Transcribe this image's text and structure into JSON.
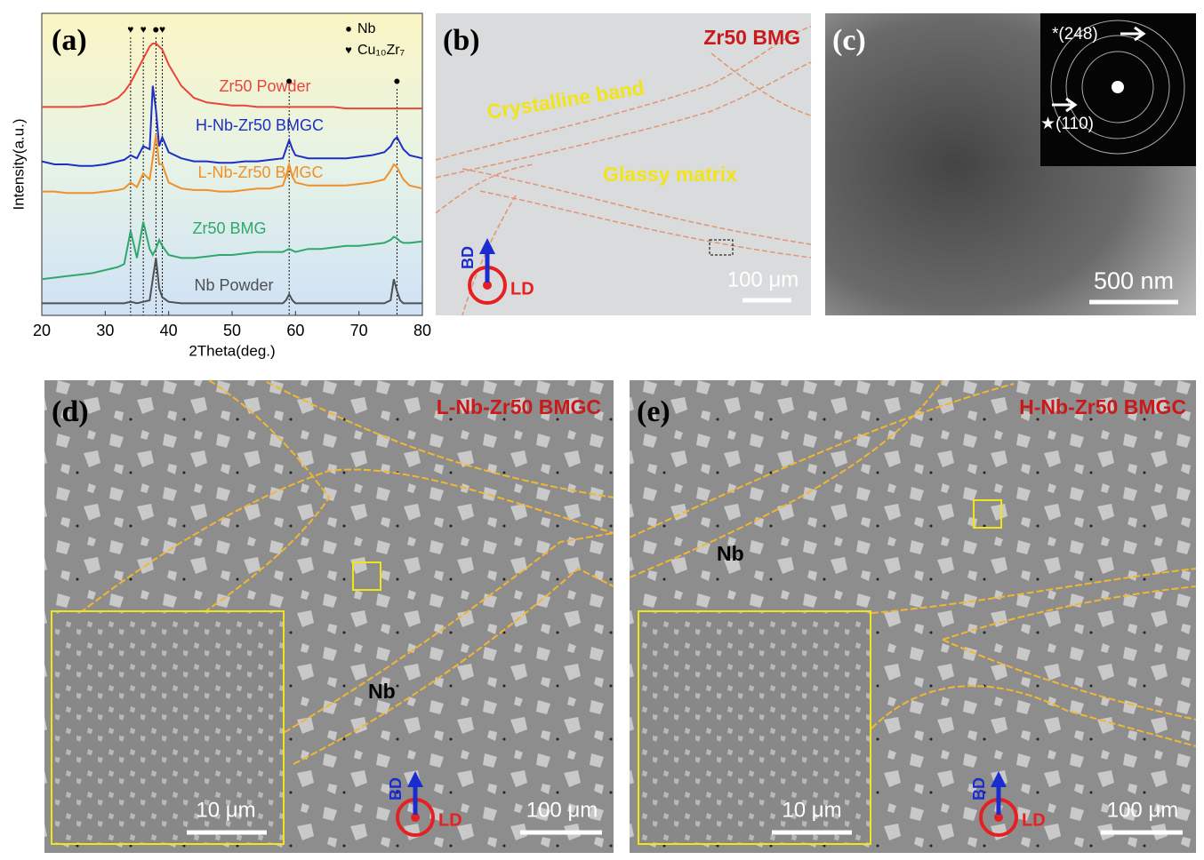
{
  "chart_data": {
    "type": "line",
    "x_label": "2Theta(deg.)",
    "y_label": "Intensity(a.u.)",
    "panel_label": "(a)",
    "xlim": [
      20,
      80
    ],
    "xticks": [
      20,
      30,
      40,
      50,
      60,
      70,
      80
    ],
    "ylim": [
      0,
      10
    ],
    "x": [
      20,
      22,
      24,
      26,
      28,
      30,
      32,
      33,
      34,
      35,
      36,
      37,
      37.5,
      38,
      38.5,
      39,
      40,
      42,
      44,
      46,
      48,
      50,
      52,
      54,
      56,
      58,
      58.5,
      59,
      59.5,
      60,
      62,
      64,
      66,
      68,
      70,
      72,
      74,
      75,
      75.5,
      76,
      76.5,
      77,
      78,
      80
    ],
    "series": [
      {
        "name": "Zr50 Powder",
        "color": "#e8453c",
        "values": [
          6.9,
          6.9,
          6.9,
          6.9,
          6.95,
          7.0,
          7.2,
          7.4,
          7.7,
          8.1,
          8.5,
          8.9,
          9.0,
          9.0,
          8.9,
          8.8,
          8.3,
          7.6,
          7.2,
          7.05,
          7.0,
          6.95,
          6.95,
          6.9,
          6.9,
          6.9,
          6.9,
          6.9,
          6.9,
          6.9,
          6.9,
          6.9,
          6.9,
          6.85,
          6.85,
          6.85,
          6.85,
          6.85,
          6.85,
          6.85,
          6.85,
          6.85,
          6.85,
          6.85
        ]
      },
      {
        "name": "H-Nb-Zr50 BMGC",
        "color": "#1f2fc4",
        "values": [
          5.1,
          5.0,
          5.0,
          4.95,
          4.95,
          5.0,
          5.1,
          5.15,
          5.3,
          5.2,
          5.6,
          5.5,
          7.6,
          6.8,
          5.6,
          5.9,
          5.4,
          5.2,
          5.1,
          5.1,
          5.05,
          5.05,
          5.1,
          5.1,
          5.15,
          5.2,
          5.5,
          5.8,
          5.5,
          5.3,
          5.2,
          5.2,
          5.2,
          5.2,
          5.25,
          5.3,
          5.4,
          5.6,
          5.8,
          5.9,
          5.7,
          5.5,
          5.3,
          5.2
        ]
      },
      {
        "name": "L-Nb-Zr50 BMGC",
        "color": "#f0902a",
        "values": [
          4.1,
          4.1,
          4.05,
          4.05,
          4.05,
          4.1,
          4.15,
          4.2,
          4.4,
          4.25,
          4.7,
          4.5,
          5.2,
          6.0,
          5.0,
          5.0,
          4.4,
          4.2,
          4.15,
          4.15,
          4.1,
          4.1,
          4.15,
          4.2,
          4.2,
          4.3,
          4.6,
          5.0,
          4.6,
          4.4,
          4.3,
          4.3,
          4.3,
          4.3,
          4.35,
          4.4,
          4.5,
          4.8,
          5.0,
          4.9,
          4.7,
          4.5,
          4.3,
          4.2
        ]
      },
      {
        "name": "Zr50 BMG",
        "color": "#2fa86a",
        "values": [
          1.2,
          1.25,
          1.3,
          1.35,
          1.4,
          1.5,
          1.6,
          1.7,
          2.8,
          1.9,
          3.1,
          2.2,
          2.0,
          2.2,
          2.5,
          2.3,
          2.0,
          1.9,
          1.9,
          1.95,
          2.0,
          2.0,
          2.05,
          2.1,
          2.1,
          2.1,
          2.15,
          2.2,
          2.15,
          2.1,
          2.2,
          2.2,
          2.25,
          2.3,
          2.3,
          2.35,
          2.4,
          2.5,
          2.6,
          2.55,
          2.45,
          2.4,
          2.4,
          2.45
        ]
      },
      {
        "name": "Nb Powder",
        "color": "#505050",
        "values": [
          0.4,
          0.4,
          0.4,
          0.4,
          0.4,
          0.4,
          0.4,
          0.4,
          0.45,
          0.4,
          0.45,
          0.5,
          1.2,
          1.9,
          0.9,
          0.6,
          0.45,
          0.4,
          0.4,
          0.4,
          0.4,
          0.4,
          0.4,
          0.4,
          0.4,
          0.4,
          0.5,
          0.7,
          0.5,
          0.4,
          0.4,
          0.4,
          0.4,
          0.4,
          0.4,
          0.4,
          0.4,
          0.5,
          1.2,
          0.8,
          0.5,
          0.4,
          0.4,
          0.4
        ]
      }
    ],
    "peak_markers": [
      {
        "x": 34,
        "symbol": "♥"
      },
      {
        "x": 36,
        "symbol": "♥"
      },
      {
        "x": 38,
        "symbol": "●"
      },
      {
        "x": 39,
        "symbol": "♥"
      },
      {
        "x": 59,
        "symbol": "●"
      },
      {
        "x": 76,
        "symbol": "●"
      }
    ],
    "legend_markers": [
      {
        "symbol": "●",
        "label": "Nb"
      },
      {
        "symbol": "♥",
        "label": "Cu₁₀Zr₇"
      }
    ]
  },
  "panels": {
    "b": {
      "label": "(b)",
      "title": "Zr50 BMG",
      "band": "Crystalline band",
      "matrix": "Glassy matrix",
      "bd": "BD",
      "ld": "LD",
      "scale": "100 μm"
    },
    "c": {
      "label": "(c)",
      "ring1": "*(248)",
      "ring2": "★(110)",
      "scale": "500 nm"
    },
    "d": {
      "label": "(d)",
      "title": "L-Nb-Zr50 BMGC",
      "phase": "Nb",
      "inset_scale": "10 μm",
      "scale": "100 μm",
      "bd": "BD",
      "ld": "LD"
    },
    "e": {
      "label": "(e)",
      "title": "H-Nb-Zr50 BMGC",
      "phase": "Nb",
      "inset_scale": "10 μm",
      "scale": "100 μm",
      "bd": "BD",
      "ld": "LD"
    }
  }
}
